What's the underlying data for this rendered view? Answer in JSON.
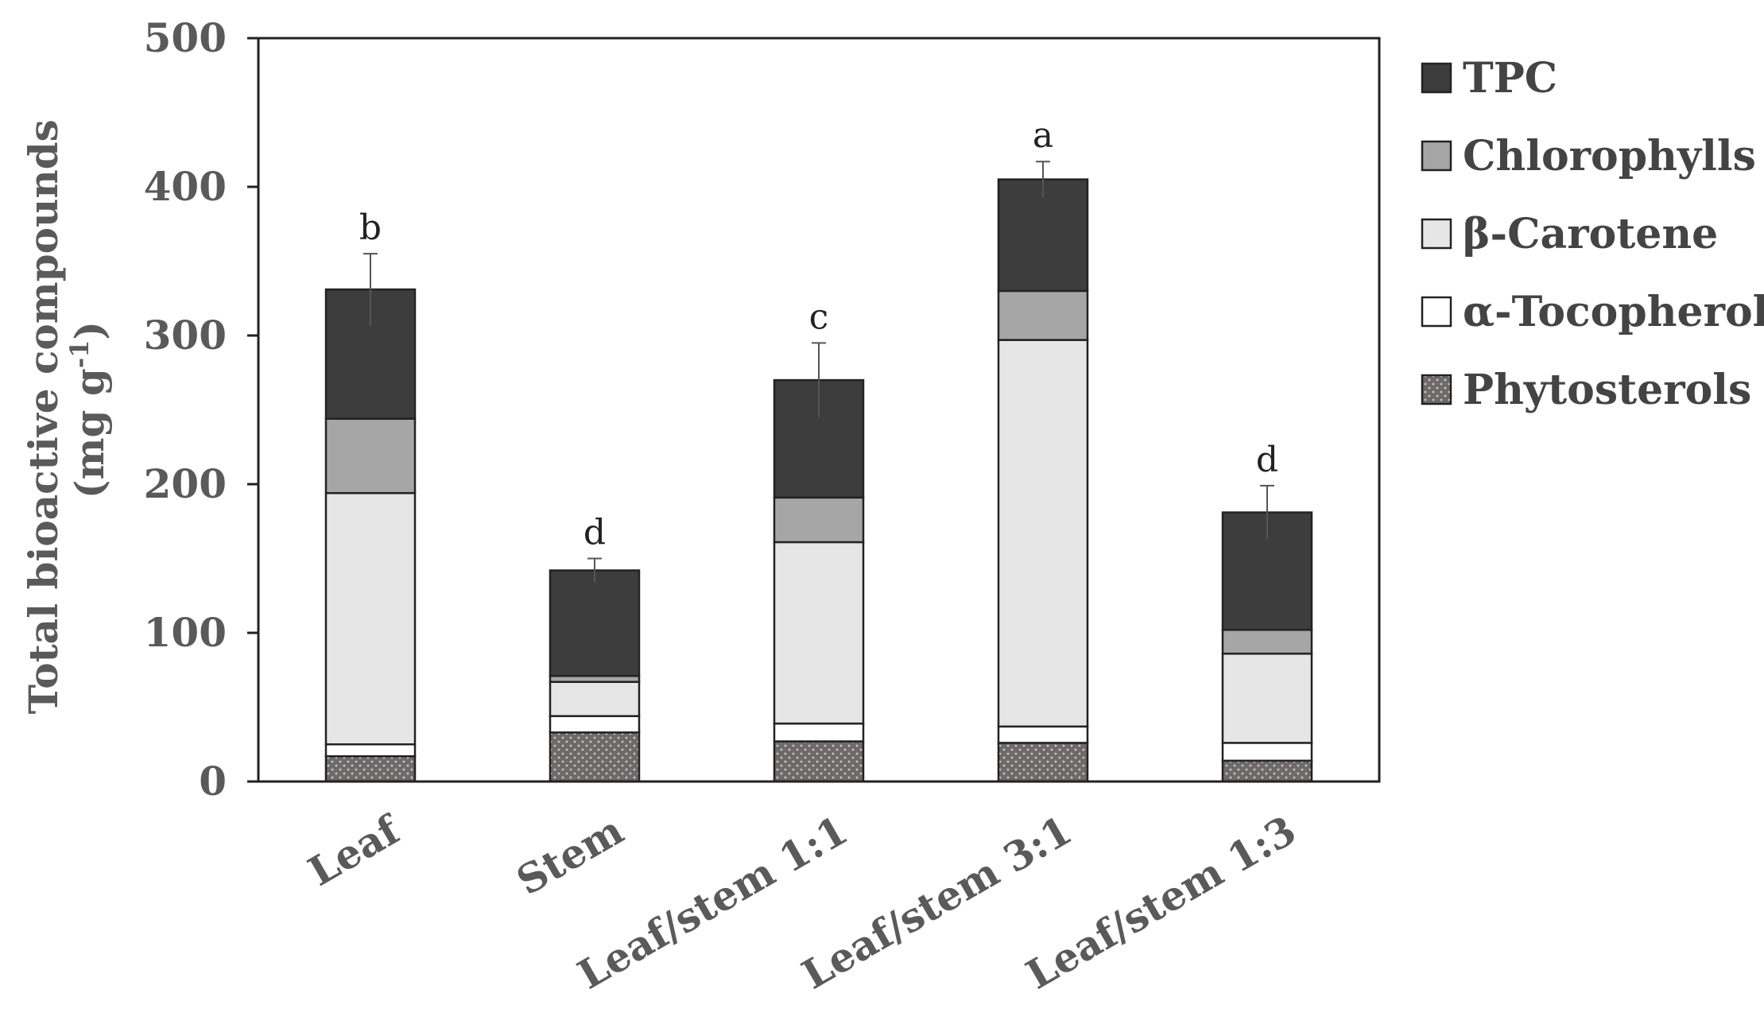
{
  "chart_data": {
    "type": "bar",
    "stacked": true,
    "title": "",
    "ylabel_line1": "Total bioactive compounds",
    "ylabel_line2": "(mg g",
    "ylabel_sup": "-1",
    "ylabel_close": ")",
    "ylim": [
      0,
      500
    ],
    "yticks": [
      0,
      100,
      200,
      300,
      400,
      500
    ],
    "categories": [
      "Leaf",
      "Stem",
      "Leaf/stem 1:1",
      "Leaf/stem 3:1",
      "Leaf/stem 1:3"
    ],
    "significance": [
      "b",
      "d",
      "c",
      "a",
      "d"
    ],
    "error": [
      24,
      8,
      25,
      12,
      18
    ],
    "legend_position": "right",
    "series": [
      {
        "name": "Phytosterols",
        "color": "#6e6a6a",
        "pattern": "dots",
        "values": [
          17,
          33,
          27,
          26,
          14
        ]
      },
      {
        "name": "α-Tocopherol",
        "color": "#ffffff",
        "values": [
          8,
          11,
          12,
          11,
          12
        ]
      },
      {
        "name": "β-Carotene",
        "color": "#e6e6e6",
        "values": [
          169,
          23,
          122,
          260,
          60
        ]
      },
      {
        "name": "Chlorophylls",
        "color": "#a6a6a6",
        "values": [
          50,
          4,
          30,
          33,
          16
        ]
      },
      {
        "name": "TPC",
        "color": "#3d3d3d",
        "values": [
          87,
          71,
          79,
          75,
          79
        ]
      }
    ],
    "legend_order": [
      "TPC",
      "Chlorophylls",
      "β-Carotene",
      "α-Tocopherol",
      "Phytosterols"
    ]
  }
}
